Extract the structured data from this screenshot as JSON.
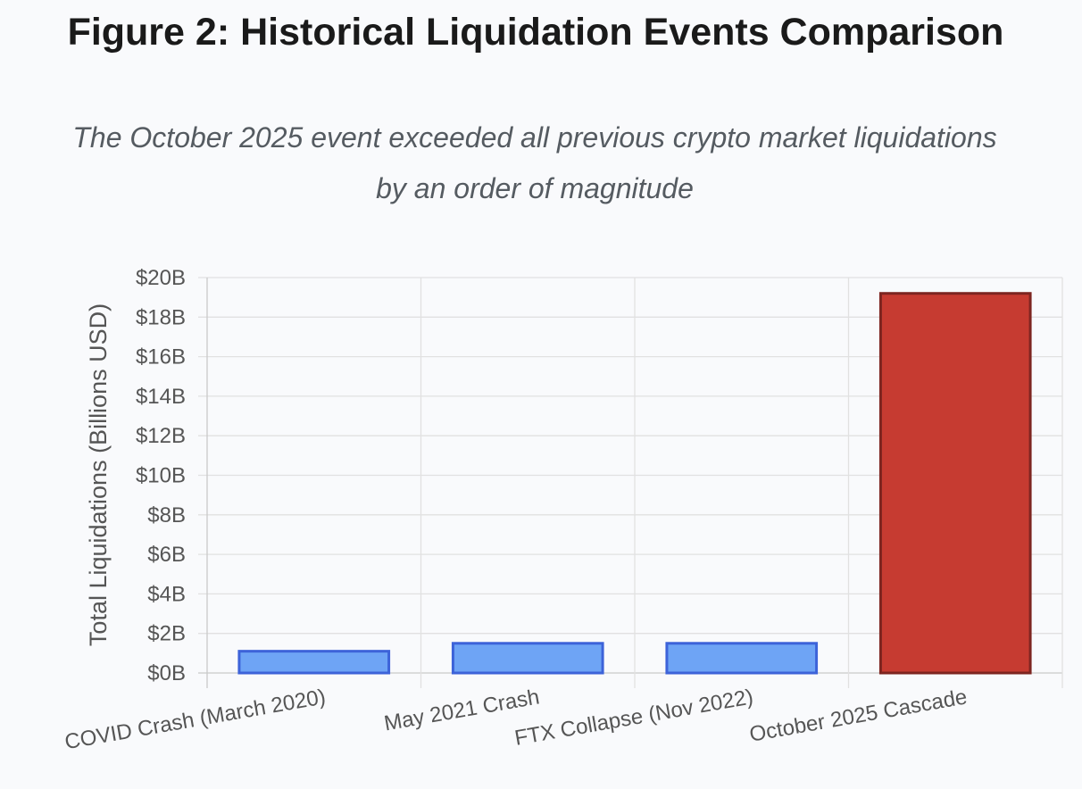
{
  "figure": {
    "title": "Figure 2: Historical Liquidation Events Comparison",
    "subtitle_line1": "The October 2025 event exceeded all previous crypto market liquidations",
    "subtitle_line2": "by an order of magnitude"
  },
  "chart_data": {
    "type": "bar",
    "title": "Figure 2: Historical Liquidation Events Comparison",
    "subtitle": "The October 2025 event exceeded all previous crypto market liquidations by an order of magnitude",
    "categories": [
      "COVID Crash (March 2020)",
      "May 2021 Crash",
      "FTX Collapse (Nov 2022)",
      "October 2025 Cascade"
    ],
    "values": [
      1.1,
      1.5,
      1.5,
      19.2
    ],
    "colors": [
      "#6ea4f5",
      "#6ea4f5",
      "#6ea4f5",
      "#c63b31"
    ],
    "border_colors": [
      "#3d63d9",
      "#3d63d9",
      "#3d63d9",
      "#7d2520"
    ],
    "xlabel": "",
    "ylabel": "Total Liquidations (Billions USD)",
    "ylim": [
      0,
      20
    ],
    "ytick_step": 2,
    "ytick_labels": [
      "$0B",
      "$2B",
      "$4B",
      "$6B",
      "$8B",
      "$10B",
      "$12B",
      "$14B",
      "$16B",
      "$18B",
      "$20B"
    ],
    "grid": true,
    "legend": "none"
  }
}
